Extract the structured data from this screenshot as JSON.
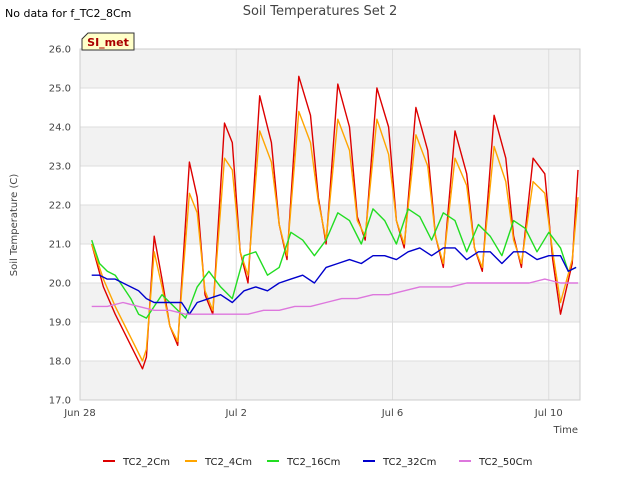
{
  "no_data_text": "No data for f_TC2_8Cm",
  "badge_label": "SI_met",
  "chart_data": {
    "type": "line",
    "title": "Soil Temperatures Set 2",
    "xlabel": "Time",
    "ylabel": "Soil Temperature (C)",
    "ylim": [
      17.0,
      26.0
    ],
    "xlim": [
      0,
      12.8
    ],
    "yticks": [
      "17.0",
      "18.0",
      "19.0",
      "20.0",
      "21.0",
      "22.0",
      "23.0",
      "24.0",
      "25.0",
      "26.0"
    ],
    "xticks": [
      {
        "day": 0,
        "label": "Jun 28"
      },
      {
        "day": 4,
        "label": "Jul 2"
      },
      {
        "day": 8,
        "label": "Jul 6"
      },
      {
        "day": 12,
        "label": "Jul 10"
      }
    ],
    "grid": true,
    "band_shading": true,
    "legend_position": "bottom",
    "colors": {
      "TC2_2Cm": "#dd0000",
      "TC2_4Cm": "#ffa500",
      "TC2_16Cm": "#22dd22",
      "TC2_32Cm": "#0000cc",
      "TC2_50Cm": "#dd77dd"
    },
    "series": [
      {
        "name": "TC2_2Cm",
        "x": [
          0.3,
          0.6,
          0.9,
          1.3,
          1.6,
          1.7,
          1.9,
          2.1,
          2.3,
          2.5,
          2.8,
          3.0,
          3.2,
          3.4,
          3.7,
          3.9,
          4.1,
          4.3,
          4.6,
          4.9,
          5.1,
          5.3,
          5.6,
          5.9,
          6.1,
          6.3,
          6.6,
          6.9,
          7.1,
          7.3,
          7.6,
          7.9,
          8.1,
          8.3,
          8.6,
          8.9,
          9.1,
          9.3,
          9.6,
          9.9,
          10.1,
          10.3,
          10.6,
          10.9,
          11.1,
          11.3,
          11.6,
          11.9,
          12.1,
          12.3,
          12.6,
          12.75
        ],
        "y": [
          21.0,
          19.9,
          19.2,
          18.4,
          17.8,
          18.1,
          21.2,
          20.1,
          18.9,
          18.4,
          23.1,
          22.2,
          19.7,
          19.2,
          24.1,
          23.6,
          20.8,
          20.0,
          24.8,
          23.6,
          21.5,
          20.6,
          25.3,
          24.3,
          22.2,
          21.0,
          25.1,
          24.0,
          21.7,
          21.1,
          25.0,
          24.0,
          21.6,
          20.9,
          24.5,
          23.4,
          21.2,
          20.4,
          23.9,
          22.8,
          20.9,
          20.3,
          24.3,
          23.2,
          21.2,
          20.4,
          23.2,
          22.8,
          20.6,
          19.2,
          20.5,
          22.9
        ]
      },
      {
        "name": "TC2_4Cm",
        "x": [
          0.3,
          0.6,
          0.9,
          1.3,
          1.6,
          1.7,
          1.9,
          2.1,
          2.3,
          2.5,
          2.8,
          3.0,
          3.2,
          3.4,
          3.7,
          3.9,
          4.1,
          4.3,
          4.6,
          4.9,
          5.1,
          5.3,
          5.6,
          5.9,
          6.1,
          6.3,
          6.6,
          6.9,
          7.1,
          7.3,
          7.6,
          7.9,
          8.1,
          8.3,
          8.6,
          8.9,
          9.1,
          9.3,
          9.6,
          9.9,
          10.1,
          10.3,
          10.6,
          10.9,
          11.1,
          11.3,
          11.6,
          11.9,
          12.1,
          12.3,
          12.6,
          12.75
        ],
        "y": [
          21.0,
          20.1,
          19.4,
          18.6,
          18.0,
          18.3,
          20.8,
          19.9,
          18.9,
          18.5,
          22.3,
          21.8,
          19.8,
          19.3,
          23.2,
          22.9,
          20.8,
          20.2,
          23.9,
          23.1,
          21.5,
          20.7,
          24.4,
          23.6,
          22.1,
          21.1,
          24.2,
          23.4,
          21.6,
          21.2,
          24.2,
          23.3,
          21.6,
          21.0,
          23.8,
          23.0,
          21.2,
          20.5,
          23.2,
          22.5,
          20.9,
          20.4,
          23.5,
          22.6,
          21.1,
          20.5,
          22.6,
          22.3,
          20.8,
          19.5,
          20.6,
          22.2
        ]
      },
      {
        "name": "TC2_16Cm",
        "x": [
          0.3,
          0.5,
          0.7,
          0.9,
          1.1,
          1.3,
          1.5,
          1.7,
          1.9,
          2.1,
          2.3,
          2.5,
          2.7,
          3.0,
          3.3,
          3.6,
          3.9,
          4.2,
          4.5,
          4.8,
          5.1,
          5.4,
          5.7,
          6.0,
          6.3,
          6.6,
          6.9,
          7.2,
          7.5,
          7.8,
          8.1,
          8.4,
          8.7,
          9.0,
          9.3,
          9.6,
          9.9,
          10.2,
          10.5,
          10.8,
          11.1,
          11.4,
          11.7,
          12.0,
          12.3,
          12.5,
          12.7
        ],
        "y": [
          21.1,
          20.5,
          20.3,
          20.2,
          19.9,
          19.6,
          19.2,
          19.1,
          19.4,
          19.7,
          19.5,
          19.3,
          19.1,
          19.9,
          20.3,
          19.9,
          19.6,
          20.7,
          20.8,
          20.2,
          20.4,
          21.3,
          21.1,
          20.7,
          21.1,
          21.8,
          21.6,
          21.0,
          21.9,
          21.6,
          21.0,
          21.9,
          21.7,
          21.1,
          21.8,
          21.6,
          20.8,
          21.5,
          21.2,
          20.7,
          21.6,
          21.4,
          20.8,
          21.3,
          20.9,
          20.3,
          20.4
        ]
      },
      {
        "name": "TC2_32Cm",
        "x": [
          0.3,
          0.5,
          0.7,
          0.9,
          1.1,
          1.3,
          1.5,
          1.7,
          1.9,
          2.1,
          2.3,
          2.6,
          2.8,
          3.0,
          3.3,
          3.6,
          3.9,
          4.2,
          4.5,
          4.8,
          5.1,
          5.4,
          5.7,
          6.0,
          6.3,
          6.6,
          6.9,
          7.2,
          7.5,
          7.8,
          8.1,
          8.4,
          8.7,
          9.0,
          9.3,
          9.6,
          9.9,
          10.2,
          10.5,
          10.8,
          11.1,
          11.4,
          11.7,
          12.0,
          12.3,
          12.5,
          12.7
        ],
        "y": [
          20.2,
          20.2,
          20.1,
          20.1,
          20.0,
          19.9,
          19.8,
          19.6,
          19.5,
          19.5,
          19.5,
          19.5,
          19.2,
          19.5,
          19.6,
          19.7,
          19.5,
          19.8,
          19.9,
          19.8,
          20.0,
          20.1,
          20.2,
          20.0,
          20.4,
          20.5,
          20.6,
          20.5,
          20.7,
          20.7,
          20.6,
          20.8,
          20.9,
          20.7,
          20.9,
          20.9,
          20.6,
          20.8,
          20.8,
          20.5,
          20.8,
          20.8,
          20.6,
          20.7,
          20.7,
          20.3,
          20.4
        ]
      },
      {
        "name": "TC2_50Cm",
        "x": [
          0.3,
          0.7,
          1.1,
          1.5,
          1.9,
          2.3,
          2.7,
          3.1,
          3.5,
          3.9,
          4.3,
          4.7,
          5.1,
          5.5,
          5.9,
          6.3,
          6.7,
          7.1,
          7.5,
          7.9,
          8.3,
          8.7,
          9.1,
          9.5,
          9.9,
          10.3,
          10.7,
          11.1,
          11.5,
          11.9,
          12.3,
          12.75
        ],
        "y": [
          19.4,
          19.4,
          19.5,
          19.4,
          19.3,
          19.3,
          19.2,
          19.2,
          19.2,
          19.2,
          19.2,
          19.3,
          19.3,
          19.4,
          19.4,
          19.5,
          19.6,
          19.6,
          19.7,
          19.7,
          19.8,
          19.9,
          19.9,
          19.9,
          20.0,
          20.0,
          20.0,
          20.0,
          20.0,
          20.1,
          20.0,
          20.0
        ]
      }
    ]
  }
}
